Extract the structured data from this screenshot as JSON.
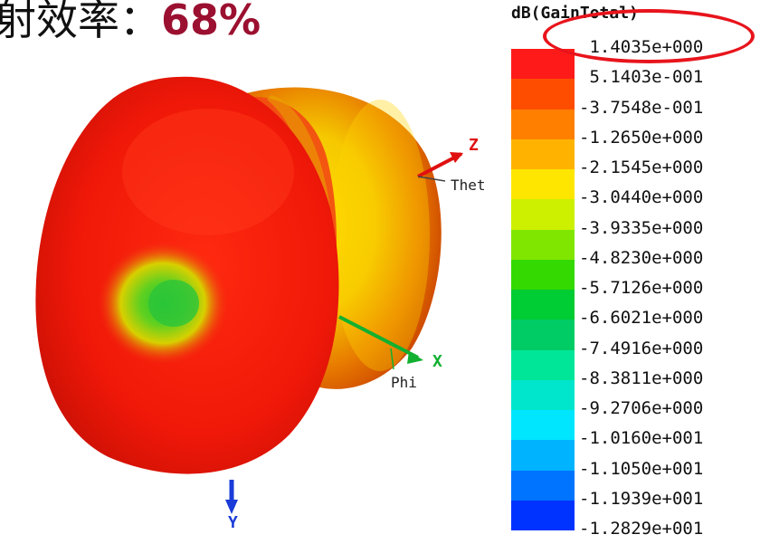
{
  "header": {
    "prefix": "射效率：",
    "value": "68%"
  },
  "scene_labels": {
    "z_axis": "Z",
    "x_axis": "X",
    "y_axis": "Y",
    "theta": "Thet",
    "phi": "Phi"
  },
  "legend": {
    "title": "dB(GainTotal)",
    "ticks": [
      "1.4035e+000",
      "5.1403e-001",
      "-3.7548e-001",
      "-1.2650e+000",
      "-2.1545e+000",
      "-3.0440e+000",
      "-3.9335e+000",
      "-4.8230e+000",
      "-5.7126e+000",
      "-6.6021e+000",
      "-7.4916e+000",
      "-8.3811e+000",
      "-9.2706e+000",
      "-1.0160e+001",
      "-1.1050e+001",
      "-1.1939e+001",
      "-1.2829e+001"
    ],
    "colors": [
      "#ff1a1a",
      "#ff4d00",
      "#ff8000",
      "#ffb300",
      "#ffe600",
      "#ccf000",
      "#80e600",
      "#33d900",
      "#00cc33",
      "#00cc66",
      "#00e699",
      "#00e6cc",
      "#00e6ff",
      "#00b3ff",
      "#0073ff",
      "#0033ff"
    ]
  },
  "colors": {
    "header_value": "#9b1030",
    "highlight": "#e8141c"
  }
}
